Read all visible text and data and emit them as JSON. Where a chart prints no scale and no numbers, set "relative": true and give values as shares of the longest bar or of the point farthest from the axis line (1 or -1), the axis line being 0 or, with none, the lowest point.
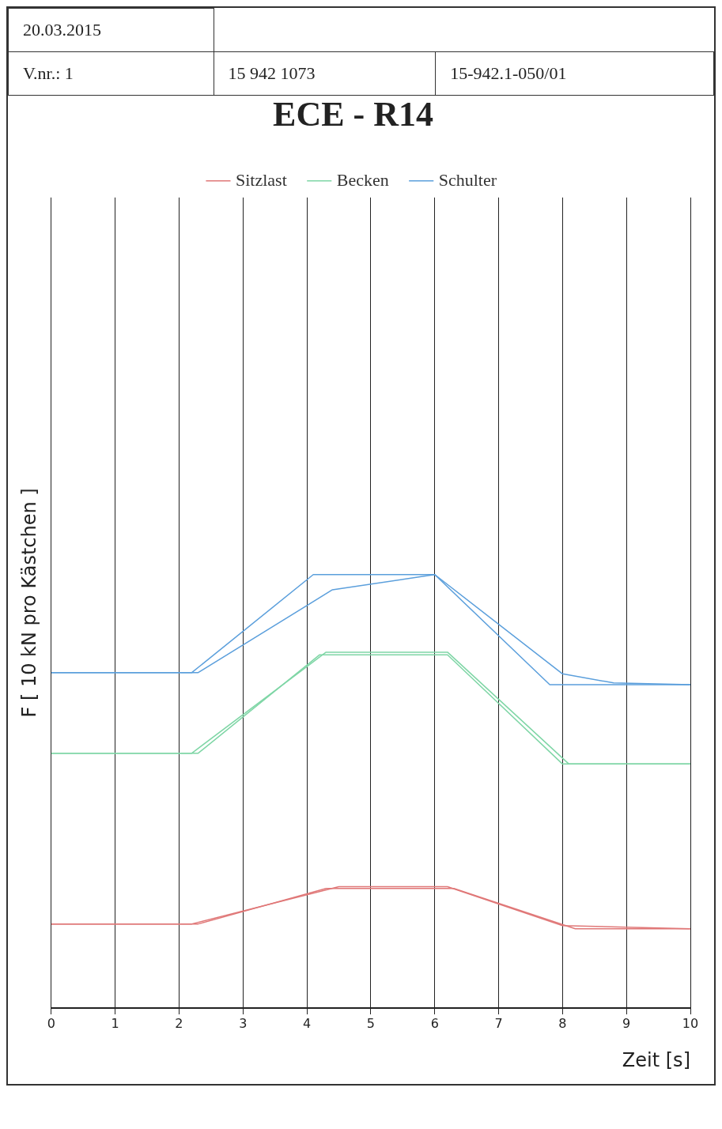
{
  "chart_data": {
    "type": "line",
    "title": "ECE - R14",
    "xlabel": "Zeit [s]",
    "ylabel": "F [ 10 kN pro Kästchen ]",
    "annotations": [
      "20.03.2015",
      "V.nr.: 1",
      "15 942 1073",
      "15-942.1-050/01"
    ],
    "relative": true,
    "xlim": [
      0,
      10
    ],
    "xticks": [
      0,
      1,
      2,
      3,
      4,
      5,
      6,
      7,
      8,
      9,
      10
    ],
    "grid": "x",
    "legend": "top",
    "marker": "none",
    "line_style": "solid",
    "series": [
      {
        "name": "Sitzlast",
        "color": "#e07878",
        "x": [
          0,
          2.3,
          4.3,
          6.3,
          8.2,
          10
        ],
        "values": [
          0.194,
          0.194,
          0.276,
          0.276,
          0.183,
          0.183
        ]
      },
      {
        "color": "#e07878",
        "x": [
          0,
          2.2,
          4.5,
          6.2,
          8.0,
          10
        ],
        "values": [
          0.194,
          0.194,
          0.28,
          0.28,
          0.19,
          0.183
        ]
      },
      {
        "name": "Becken",
        "color": "#7fd6a6",
        "x": [
          0,
          2.3,
          4.2,
          6.2,
          8.0,
          10
        ],
        "values": [
          0.588,
          0.588,
          0.815,
          0.815,
          0.563,
          0.563
        ]
      },
      {
        "color": "#7fd6a6",
        "x": [
          0,
          2.2,
          4.3,
          6.2,
          8.1,
          10
        ],
        "values": [
          0.588,
          0.588,
          0.821,
          0.821,
          0.563,
          0.563
        ]
      },
      {
        "name": "Schulter",
        "color": "#5b9fdc",
        "x": [
          0,
          2.2,
          4.1,
          6.0,
          7.8,
          10
        ],
        "values": [
          0.774,
          0.774,
          1,
          1,
          0.746,
          0.746
        ]
      },
      {
        "color": "#5b9fdc",
        "x": [
          0,
          2.3,
          4.4,
          6.0,
          8.0,
          8.8,
          10
        ],
        "values": [
          0.774,
          0.774,
          0.965,
          1,
          0.771,
          0.75,
          0.746
        ]
      }
    ]
  }
}
